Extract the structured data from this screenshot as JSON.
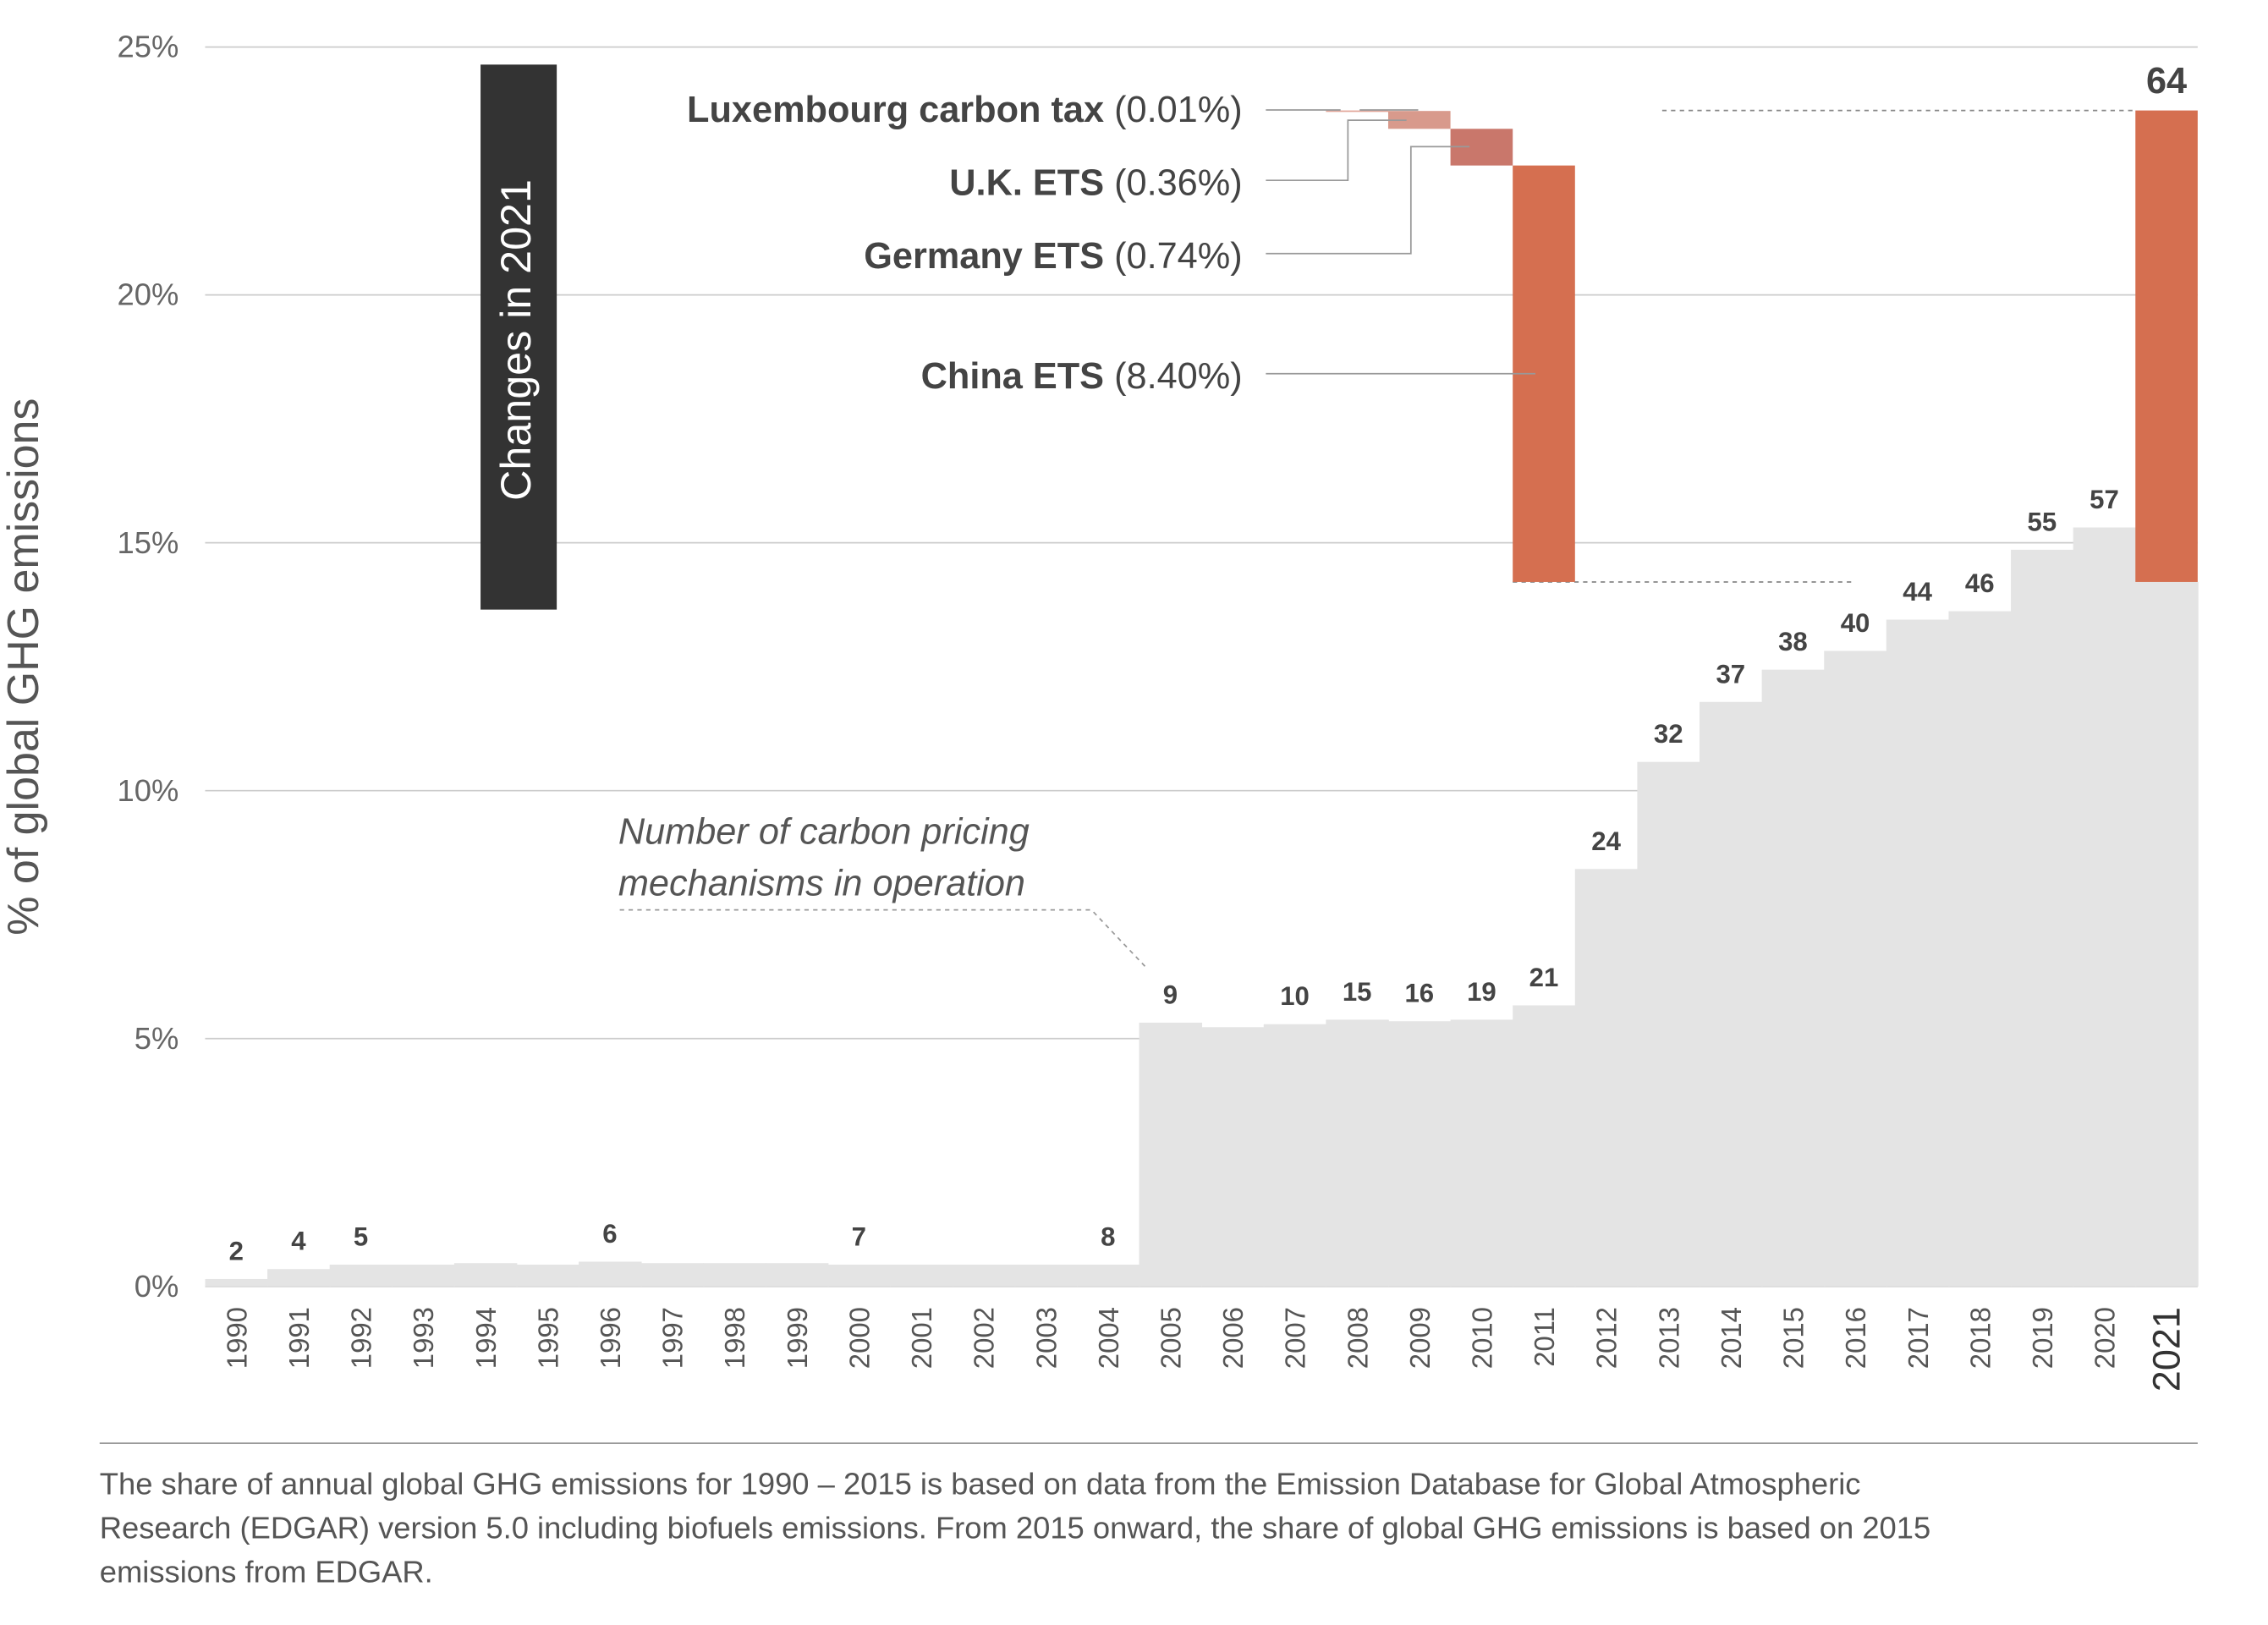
{
  "chart_data": {
    "type": "bar",
    "y_label": "% of global GHG emissions",
    "ylim": [
      0,
      25
    ],
    "yticks": [
      {
        "value": 0,
        "label": "0%"
      },
      {
        "value": 5,
        "label": "5%"
      },
      {
        "value": 10,
        "label": "10%"
      },
      {
        "value": 15,
        "label": "15%"
      },
      {
        "value": 20,
        "label": "20%"
      },
      {
        "value": 25,
        "label": "25%"
      }
    ],
    "grid": true,
    "color": "#e4e4e4",
    "categories": [
      "1990",
      "1991",
      "1992",
      "1993",
      "1994",
      "1995",
      "1996",
      "1997",
      "1998",
      "1999",
      "2000",
      "2001",
      "2002",
      "2003",
      "2004",
      "2005",
      "2006",
      "2007",
      "2008",
      "2009",
      "2010",
      "2011",
      "2012",
      "2013",
      "2014",
      "2015",
      "2016",
      "2017",
      "2018",
      "2019",
      "2020",
      "2021"
    ],
    "values": [
      0.15,
      0.35,
      0.44,
      0.44,
      0.47,
      0.44,
      0.5,
      0.47,
      0.47,
      0.47,
      0.44,
      0.44,
      0.44,
      0.44,
      0.44,
      5.32,
      5.23,
      5.29,
      5.38,
      5.35,
      5.38,
      5.67,
      8.42,
      10.58,
      11.79,
      12.44,
      12.82,
      13.45,
      13.62,
      14.86,
      15.31,
      14.21
    ],
    "mechanism_counts": [
      2,
      4,
      5,
      null,
      null,
      null,
      6,
      null,
      null,
      null,
      7,
      null,
      null,
      null,
      8,
      9,
      null,
      10,
      15,
      16,
      19,
      21,
      24,
      32,
      37,
      38,
      40,
      44,
      46,
      55,
      57,
      64
    ],
    "changes_title": "Changes in 2021",
    "changes": [
      {
        "name": "Luxembourg carbon tax",
        "value": 0.01,
        "value_label": "(0.01%)",
        "color": "#e2a79a"
      },
      {
        "name": "U.K. ETS",
        "value": 0.36,
        "value_label": "(0.36%)",
        "color": "#d89a8c"
      },
      {
        "name": "Germany ETS",
        "value": 0.74,
        "value_label": "(0.74%)",
        "color": "#c9776b"
      },
      {
        "name": "China ETS",
        "value": 8.4,
        "value_label": "(8.40%)",
        "color": "#d56f50"
      }
    ],
    "total_color": "#d56f50",
    "annotation": [
      "Number of carbon pricing",
      "mechanisms in operation"
    ],
    "note": [
      "The share of annual global GHG emissions for 1990 – 2015 is based on data from the Emission Database for Global Atmospheric",
      "Research (EDGAR) version 5.0 including biofuels emissions. From 2015 onward, the share of global GHG emissions is based on 2015",
      "emissions from EDGAR."
    ]
  }
}
